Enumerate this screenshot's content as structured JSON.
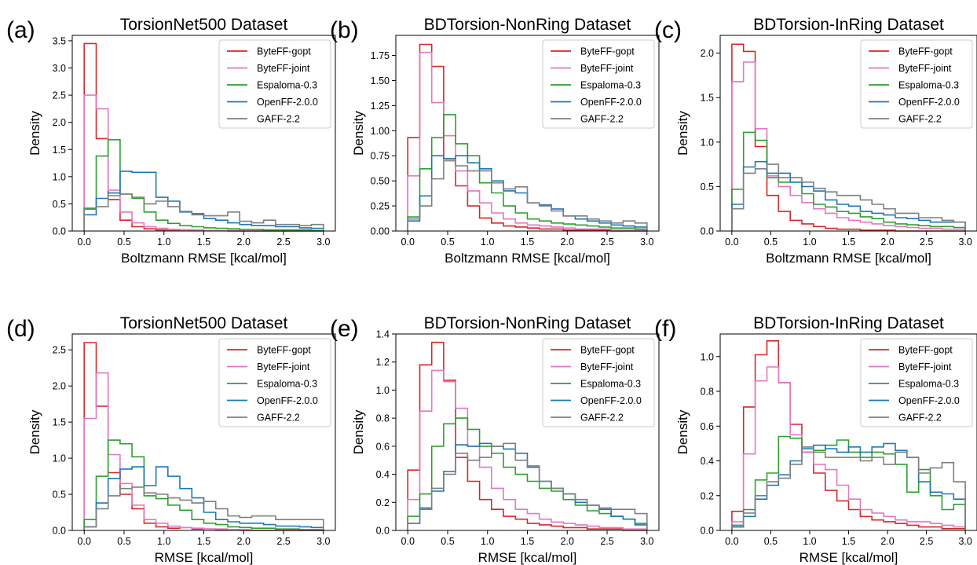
{
  "colors": {
    "ByteFF-gopt": "#d62728",
    "ByteFF-joint": "#e377c2",
    "Espaloma-0.3": "#2ca02c",
    "OpenFF-2.0.0": "#1f77b4",
    "GAFF-2.2": "#7f7f7f"
  },
  "chart_data": [
    {
      "type": "histogram",
      "panel_label": "(a)",
      "title": "TorsionNet500 Dataset",
      "xlabel": "Boltzmann RMSE [kcal/mol]",
      "ylabel": "Density",
      "xlim": [
        -0.15,
        3.15
      ],
      "ylim": [
        0,
        3.6
      ],
      "xticks": [
        "0.0",
        "0.5",
        "1.0",
        "1.5",
        "2.0",
        "2.5",
        "3.0"
      ],
      "yticks": [
        "0.0",
        "0.5",
        "1.0",
        "1.5",
        "2.0",
        "2.5",
        "3.0",
        "3.5"
      ],
      "bin_edges": [
        0,
        0.15,
        0.3,
        0.45,
        0.6,
        0.75,
        0.9,
        1.05,
        1.2,
        1.35,
        1.5,
        1.65,
        1.8,
        1.95,
        2.1,
        2.25,
        2.4,
        2.55,
        2.7,
        2.85,
        3.0
      ],
      "legend_position": "upper right",
      "series": [
        {
          "name": "ByteFF-gopt",
          "values": [
            3.45,
            1.7,
            0.58,
            0.2,
            0.08,
            0.04,
            0.02,
            0.02,
            0.02,
            0.01,
            0.01,
            0.01,
            0,
            0,
            0,
            0,
            0,
            0,
            0,
            0
          ]
        },
        {
          "name": "ByteFF-joint",
          "values": [
            2.5,
            2.25,
            0.75,
            0.35,
            0.15,
            0.08,
            0.05,
            0.03,
            0.02,
            0.02,
            0.01,
            0.01,
            0.01,
            0,
            0,
            0,
            0,
            0,
            0,
            0
          ]
        },
        {
          "name": "Espaloma-0.3",
          "values": [
            0.42,
            1.38,
            1.68,
            0.68,
            0.6,
            0.35,
            0.2,
            0.14,
            0.1,
            0.08,
            0.06,
            0.05,
            0.04,
            0.03,
            0.03,
            0.02,
            0.02,
            0.02,
            0.02,
            0.01
          ]
        },
        {
          "name": "OpenFF-2.0.0",
          "values": [
            0.3,
            0.6,
            0.7,
            1.1,
            1.08,
            1.08,
            0.62,
            0.55,
            0.35,
            0.32,
            0.23,
            0.2,
            0.15,
            0.12,
            0.1,
            0.1,
            0.08,
            0.08,
            0.06,
            0.05
          ]
        },
        {
          "name": "GAFF-2.2",
          "values": [
            0.4,
            0.45,
            0.65,
            0.68,
            0.62,
            0.5,
            0.55,
            0.45,
            0.36,
            0.3,
            0.28,
            0.28,
            0.35,
            0.18,
            0.15,
            0.2,
            0.12,
            0.12,
            0.1,
            0.12
          ]
        }
      ]
    },
    {
      "type": "histogram",
      "panel_label": "(b)",
      "title": "BDTorsion-NonRing Dataset",
      "xlabel": "Boltzmann RMSE [kcal/mol]",
      "ylabel": "Density",
      "xlim": [
        -0.15,
        3.15
      ],
      "ylim": [
        0,
        1.95
      ],
      "xticks": [
        "0.0",
        "0.5",
        "1.0",
        "1.5",
        "2.0",
        "2.5",
        "3.0"
      ],
      "yticks": [
        "0.00",
        "0.25",
        "0.50",
        "0.75",
        "1.00",
        "1.25",
        "1.50",
        "1.75"
      ],
      "bin_edges": [
        0,
        0.15,
        0.3,
        0.45,
        0.6,
        0.75,
        0.9,
        1.05,
        1.2,
        1.35,
        1.5,
        1.65,
        1.8,
        1.95,
        2.1,
        2.25,
        2.4,
        2.55,
        2.7,
        2.85,
        3.0
      ],
      "legend_position": "upper right",
      "series": [
        {
          "name": "ByteFF-gopt",
          "values": [
            0.93,
            1.86,
            1.64,
            0.72,
            0.45,
            0.25,
            0.13,
            0.08,
            0.05,
            0.04,
            0.03,
            0.02,
            0.02,
            0.01,
            0.01,
            0.01,
            0.01,
            0,
            0,
            0
          ]
        },
        {
          "name": "ByteFF-joint",
          "values": [
            0.55,
            1.78,
            1.28,
            0.95,
            0.6,
            0.4,
            0.28,
            0.18,
            0.12,
            0.08,
            0.06,
            0.05,
            0.04,
            0.03,
            0.02,
            0.02,
            0.02,
            0.01,
            0.01,
            0.01
          ]
        },
        {
          "name": "Espaloma-0.3",
          "values": [
            0.14,
            0.62,
            0.93,
            1.16,
            0.87,
            0.75,
            0.48,
            0.38,
            0.25,
            0.18,
            0.12,
            0.1,
            0.08,
            0.07,
            0.06,
            0.05,
            0.04,
            0.03,
            0.03,
            0.02
          ]
        },
        {
          "name": "OpenFF-2.0.0",
          "values": [
            0.1,
            0.35,
            0.75,
            0.72,
            0.75,
            0.68,
            0.62,
            0.5,
            0.4,
            0.38,
            0.28,
            0.26,
            0.22,
            0.15,
            0.12,
            0.1,
            0.08,
            0.06,
            0.05,
            0.04
          ]
        },
        {
          "name": "GAFF-2.2",
          "values": [
            0.12,
            0.25,
            0.52,
            0.7,
            0.65,
            0.6,
            0.6,
            0.48,
            0.42,
            0.44,
            0.28,
            0.25,
            0.2,
            0.15,
            0.15,
            0.12,
            0.1,
            0.08,
            0.1,
            0.08
          ]
        }
      ]
    },
    {
      "type": "histogram",
      "panel_label": "(c)",
      "title": "BDTorsion-InRing Dataset",
      "xlabel": "Boltzmann RMSE [kcal/mol]",
      "ylabel": "Density",
      "xlim": [
        -0.15,
        3.15
      ],
      "ylim": [
        0,
        2.2
      ],
      "xticks": [
        "0.0",
        "0.5",
        "1.0",
        "1.5",
        "2.0",
        "2.5",
        "3.0"
      ],
      "yticks": [
        "0.0",
        "0.5",
        "1.0",
        "1.5",
        "2.0"
      ],
      "bin_edges": [
        0,
        0.15,
        0.3,
        0.45,
        0.6,
        0.75,
        0.9,
        1.05,
        1.2,
        1.35,
        1.5,
        1.65,
        1.8,
        1.95,
        2.1,
        2.25,
        2.4,
        2.55,
        2.7,
        2.85,
        3.0
      ],
      "legend_position": "upper right",
      "series": [
        {
          "name": "ByteFF-gopt",
          "values": [
            2.1,
            2.02,
            0.95,
            0.4,
            0.22,
            0.12,
            0.08,
            0.05,
            0.03,
            0.02,
            0.02,
            0.01,
            0.01,
            0.01,
            0,
            0,
            0,
            0,
            0,
            0
          ]
        },
        {
          "name": "ByteFF-joint",
          "values": [
            1.68,
            1.9,
            1.15,
            0.62,
            0.5,
            0.4,
            0.32,
            0.25,
            0.2,
            0.15,
            0.12,
            0.1,
            0.08,
            0.06,
            0.05,
            0.04,
            0.03,
            0.03,
            0.02,
            0.02
          ]
        },
        {
          "name": "Espaloma-0.3",
          "values": [
            0.47,
            1.11,
            1.02,
            0.6,
            0.55,
            0.55,
            0.42,
            0.3,
            0.27,
            0.22,
            0.2,
            0.16,
            0.14,
            0.1,
            0.08,
            0.07,
            0.06,
            0.05,
            0.05,
            0.04
          ]
        },
        {
          "name": "OpenFF-2.0.0",
          "values": [
            0.3,
            0.72,
            0.78,
            0.65,
            0.65,
            0.55,
            0.5,
            0.45,
            0.35,
            0.3,
            0.28,
            0.22,
            0.2,
            0.18,
            0.15,
            0.14,
            0.12,
            0.1,
            0.1,
            0.1
          ]
        },
        {
          "name": "GAFF-2.2",
          "values": [
            0.25,
            0.65,
            0.7,
            0.75,
            0.6,
            0.6,
            0.55,
            0.48,
            0.44,
            0.4,
            0.4,
            0.35,
            0.3,
            0.25,
            0.2,
            0.2,
            0.15,
            0.15,
            0.12,
            0.1
          ]
        }
      ]
    },
    {
      "type": "histogram",
      "panel_label": "(d)",
      "title": "TorsionNet500 Dataset",
      "xlabel": "RMSE [kcal/mol]",
      "ylabel": "Density",
      "xlim": [
        -0.15,
        3.15
      ],
      "ylim": [
        0,
        2.72
      ],
      "xticks": [
        "0.0",
        "0.5",
        "1.0",
        "1.5",
        "2.0",
        "2.5",
        "3.0"
      ],
      "yticks": [
        "0.0",
        "0.5",
        "1.0",
        "1.5",
        "2.0",
        "2.5"
      ],
      "bin_edges": [
        0,
        0.15,
        0.3,
        0.45,
        0.6,
        0.75,
        0.9,
        1.05,
        1.2,
        1.35,
        1.5,
        1.65,
        1.8,
        1.95,
        2.1,
        2.25,
        2.4,
        2.55,
        2.7,
        2.85,
        3.0
      ],
      "legend_position": "upper right",
      "series": [
        {
          "name": "ByteFF-gopt",
          "values": [
            2.6,
            1.72,
            0.8,
            0.5,
            0.3,
            0.1,
            0.05,
            0.03,
            0.04,
            0.02,
            0.02,
            0.01,
            0.01,
            0,
            0,
            0,
            0,
            0,
            0,
            0
          ]
        },
        {
          "name": "ByteFF-joint",
          "values": [
            1.55,
            2.18,
            1.05,
            0.65,
            0.35,
            0.15,
            0.1,
            0.06,
            0.04,
            0.03,
            0.02,
            0.02,
            0.01,
            0.01,
            0,
            0,
            0,
            0,
            0,
            0
          ]
        },
        {
          "name": "Espaloma-0.3",
          "values": [
            0.15,
            0.75,
            1.25,
            1.2,
            1.02,
            0.48,
            0.44,
            0.35,
            0.28,
            0.15,
            0.1,
            0.08,
            0.05,
            0.04,
            0.03,
            0.03,
            0.02,
            0.02,
            0.01,
            0.01
          ]
        },
        {
          "name": "OpenFF-2.0.0",
          "values": [
            0.05,
            0.38,
            0.72,
            0.85,
            0.88,
            0.62,
            0.88,
            0.75,
            0.58,
            0.45,
            0.25,
            0.15,
            0.12,
            0.1,
            0.1,
            0.08,
            0.06,
            0.06,
            0.05,
            0.04
          ]
        },
        {
          "name": "GAFF-2.2",
          "values": [
            0.05,
            0.3,
            0.48,
            0.58,
            0.6,
            0.52,
            0.5,
            0.45,
            0.42,
            0.38,
            0.4,
            0.3,
            0.2,
            0.18,
            0.2,
            0.2,
            0.15,
            0.15,
            0.15,
            0.15
          ]
        }
      ]
    },
    {
      "type": "histogram",
      "panel_label": "(e)",
      "title": "BDTorsion-NonRing Dataset",
      "xlabel": "RMSE [kcal/mol]",
      "ylabel": "Density",
      "xlim": [
        -0.15,
        3.15
      ],
      "ylim": [
        0,
        1.4
      ],
      "xticks": [
        "0.0",
        "0.5",
        "1.0",
        "1.5",
        "2.0",
        "2.5",
        "3.0"
      ],
      "yticks": [
        "0.0",
        "0.2",
        "0.4",
        "0.6",
        "0.8",
        "1.0",
        "1.2",
        "1.4"
      ],
      "bin_edges": [
        0,
        0.15,
        0.3,
        0.45,
        0.6,
        0.75,
        0.9,
        1.05,
        1.2,
        1.35,
        1.5,
        1.65,
        1.8,
        1.95,
        2.1,
        2.25,
        2.4,
        2.55,
        2.7,
        2.85,
        3.0
      ],
      "legend_position": "upper right",
      "series": [
        {
          "name": "ByteFF-gopt",
          "values": [
            0.43,
            1.18,
            1.34,
            1.07,
            0.52,
            0.35,
            0.22,
            0.15,
            0.1,
            0.08,
            0.05,
            0.04,
            0.03,
            0.02,
            0.02,
            0.01,
            0.01,
            0.01,
            0,
            0
          ]
        },
        {
          "name": "ByteFF-joint",
          "values": [
            0.22,
            0.85,
            1.14,
            1.06,
            0.87,
            0.6,
            0.45,
            0.3,
            0.22,
            0.15,
            0.12,
            0.08,
            0.06,
            0.05,
            0.04,
            0.03,
            0.02,
            0.02,
            0.01,
            0.01
          ]
        },
        {
          "name": "Espaloma-0.3",
          "values": [
            0.1,
            0.26,
            0.6,
            0.76,
            0.8,
            0.72,
            0.6,
            0.55,
            0.45,
            0.4,
            0.35,
            0.3,
            0.28,
            0.22,
            0.18,
            0.14,
            0.12,
            0.1,
            0.08,
            0.05
          ]
        },
        {
          "name": "OpenFF-2.0.0",
          "values": [
            0.05,
            0.16,
            0.28,
            0.42,
            0.61,
            0.6,
            0.62,
            0.6,
            0.58,
            0.55,
            0.45,
            0.35,
            0.3,
            0.26,
            0.2,
            0.18,
            0.15,
            0.1,
            0.08,
            0.04
          ]
        },
        {
          "name": "GAFF-2.2",
          "values": [
            0.05,
            0.15,
            0.3,
            0.4,
            0.55,
            0.5,
            0.52,
            0.6,
            0.62,
            0.5,
            0.46,
            0.35,
            0.3,
            0.26,
            0.22,
            0.18,
            0.16,
            0.15,
            0.15,
            0.12
          ]
        }
      ]
    },
    {
      "type": "histogram",
      "panel_label": "(f)",
      "title": "BDTorsion-InRing Dataset",
      "xlabel": "RMSE [kcal/mol]",
      "ylabel": "Density",
      "xlim": [
        -0.15,
        3.15
      ],
      "ylim": [
        0,
        1.13
      ],
      "xticks": [
        "0.0",
        "0.5",
        "1.0",
        "1.5",
        "2.0",
        "2.5",
        "3.0"
      ],
      "yticks": [
        "0.0",
        "0.2",
        "0.4",
        "0.6",
        "0.8",
        "1.0"
      ],
      "bin_edges": [
        0,
        0.15,
        0.3,
        0.45,
        0.6,
        0.75,
        0.9,
        1.05,
        1.2,
        1.35,
        1.5,
        1.65,
        1.8,
        1.95,
        2.1,
        2.25,
        2.4,
        2.55,
        2.7,
        2.85,
        3.0
      ],
      "legend_position": "upper right",
      "series": [
        {
          "name": "ByteFF-gopt",
          "values": [
            0.11,
            0.71,
            1.01,
            1.09,
            0.85,
            0.61,
            0.45,
            0.33,
            0.23,
            0.17,
            0.12,
            0.08,
            0.06,
            0.05,
            0.04,
            0.03,
            0.02,
            0.02,
            0.01,
            0.01
          ]
        },
        {
          "name": "ByteFF-joint",
          "values": [
            0.05,
            0.44,
            0.86,
            0.94,
            0.85,
            0.55,
            0.45,
            0.38,
            0.35,
            0.26,
            0.18,
            0.12,
            0.1,
            0.08,
            0.06,
            0.05,
            0.05,
            0.04,
            0.03,
            0.02
          ]
        },
        {
          "name": "Espaloma-0.3",
          "values": [
            0.03,
            0.12,
            0.29,
            0.33,
            0.54,
            0.53,
            0.48,
            0.46,
            0.49,
            0.52,
            0.45,
            0.42,
            0.45,
            0.44,
            0.38,
            0.22,
            0.35,
            0.2,
            0.12,
            0.15
          ]
        },
        {
          "name": "OpenFF-2.0.0",
          "values": [
            0.02,
            0.08,
            0.18,
            0.26,
            0.32,
            0.4,
            0.47,
            0.49,
            0.47,
            0.45,
            0.48,
            0.45,
            0.48,
            0.5,
            0.46,
            0.42,
            0.28,
            0.22,
            0.21,
            0.18
          ]
        },
        {
          "name": "GAFF-2.2",
          "values": [
            0.03,
            0.1,
            0.2,
            0.28,
            0.3,
            0.38,
            0.48,
            0.45,
            0.42,
            0.42,
            0.42,
            0.4,
            0.42,
            0.38,
            0.45,
            0.42,
            0.33,
            0.36,
            0.39,
            0.28
          ]
        }
      ]
    }
  ]
}
